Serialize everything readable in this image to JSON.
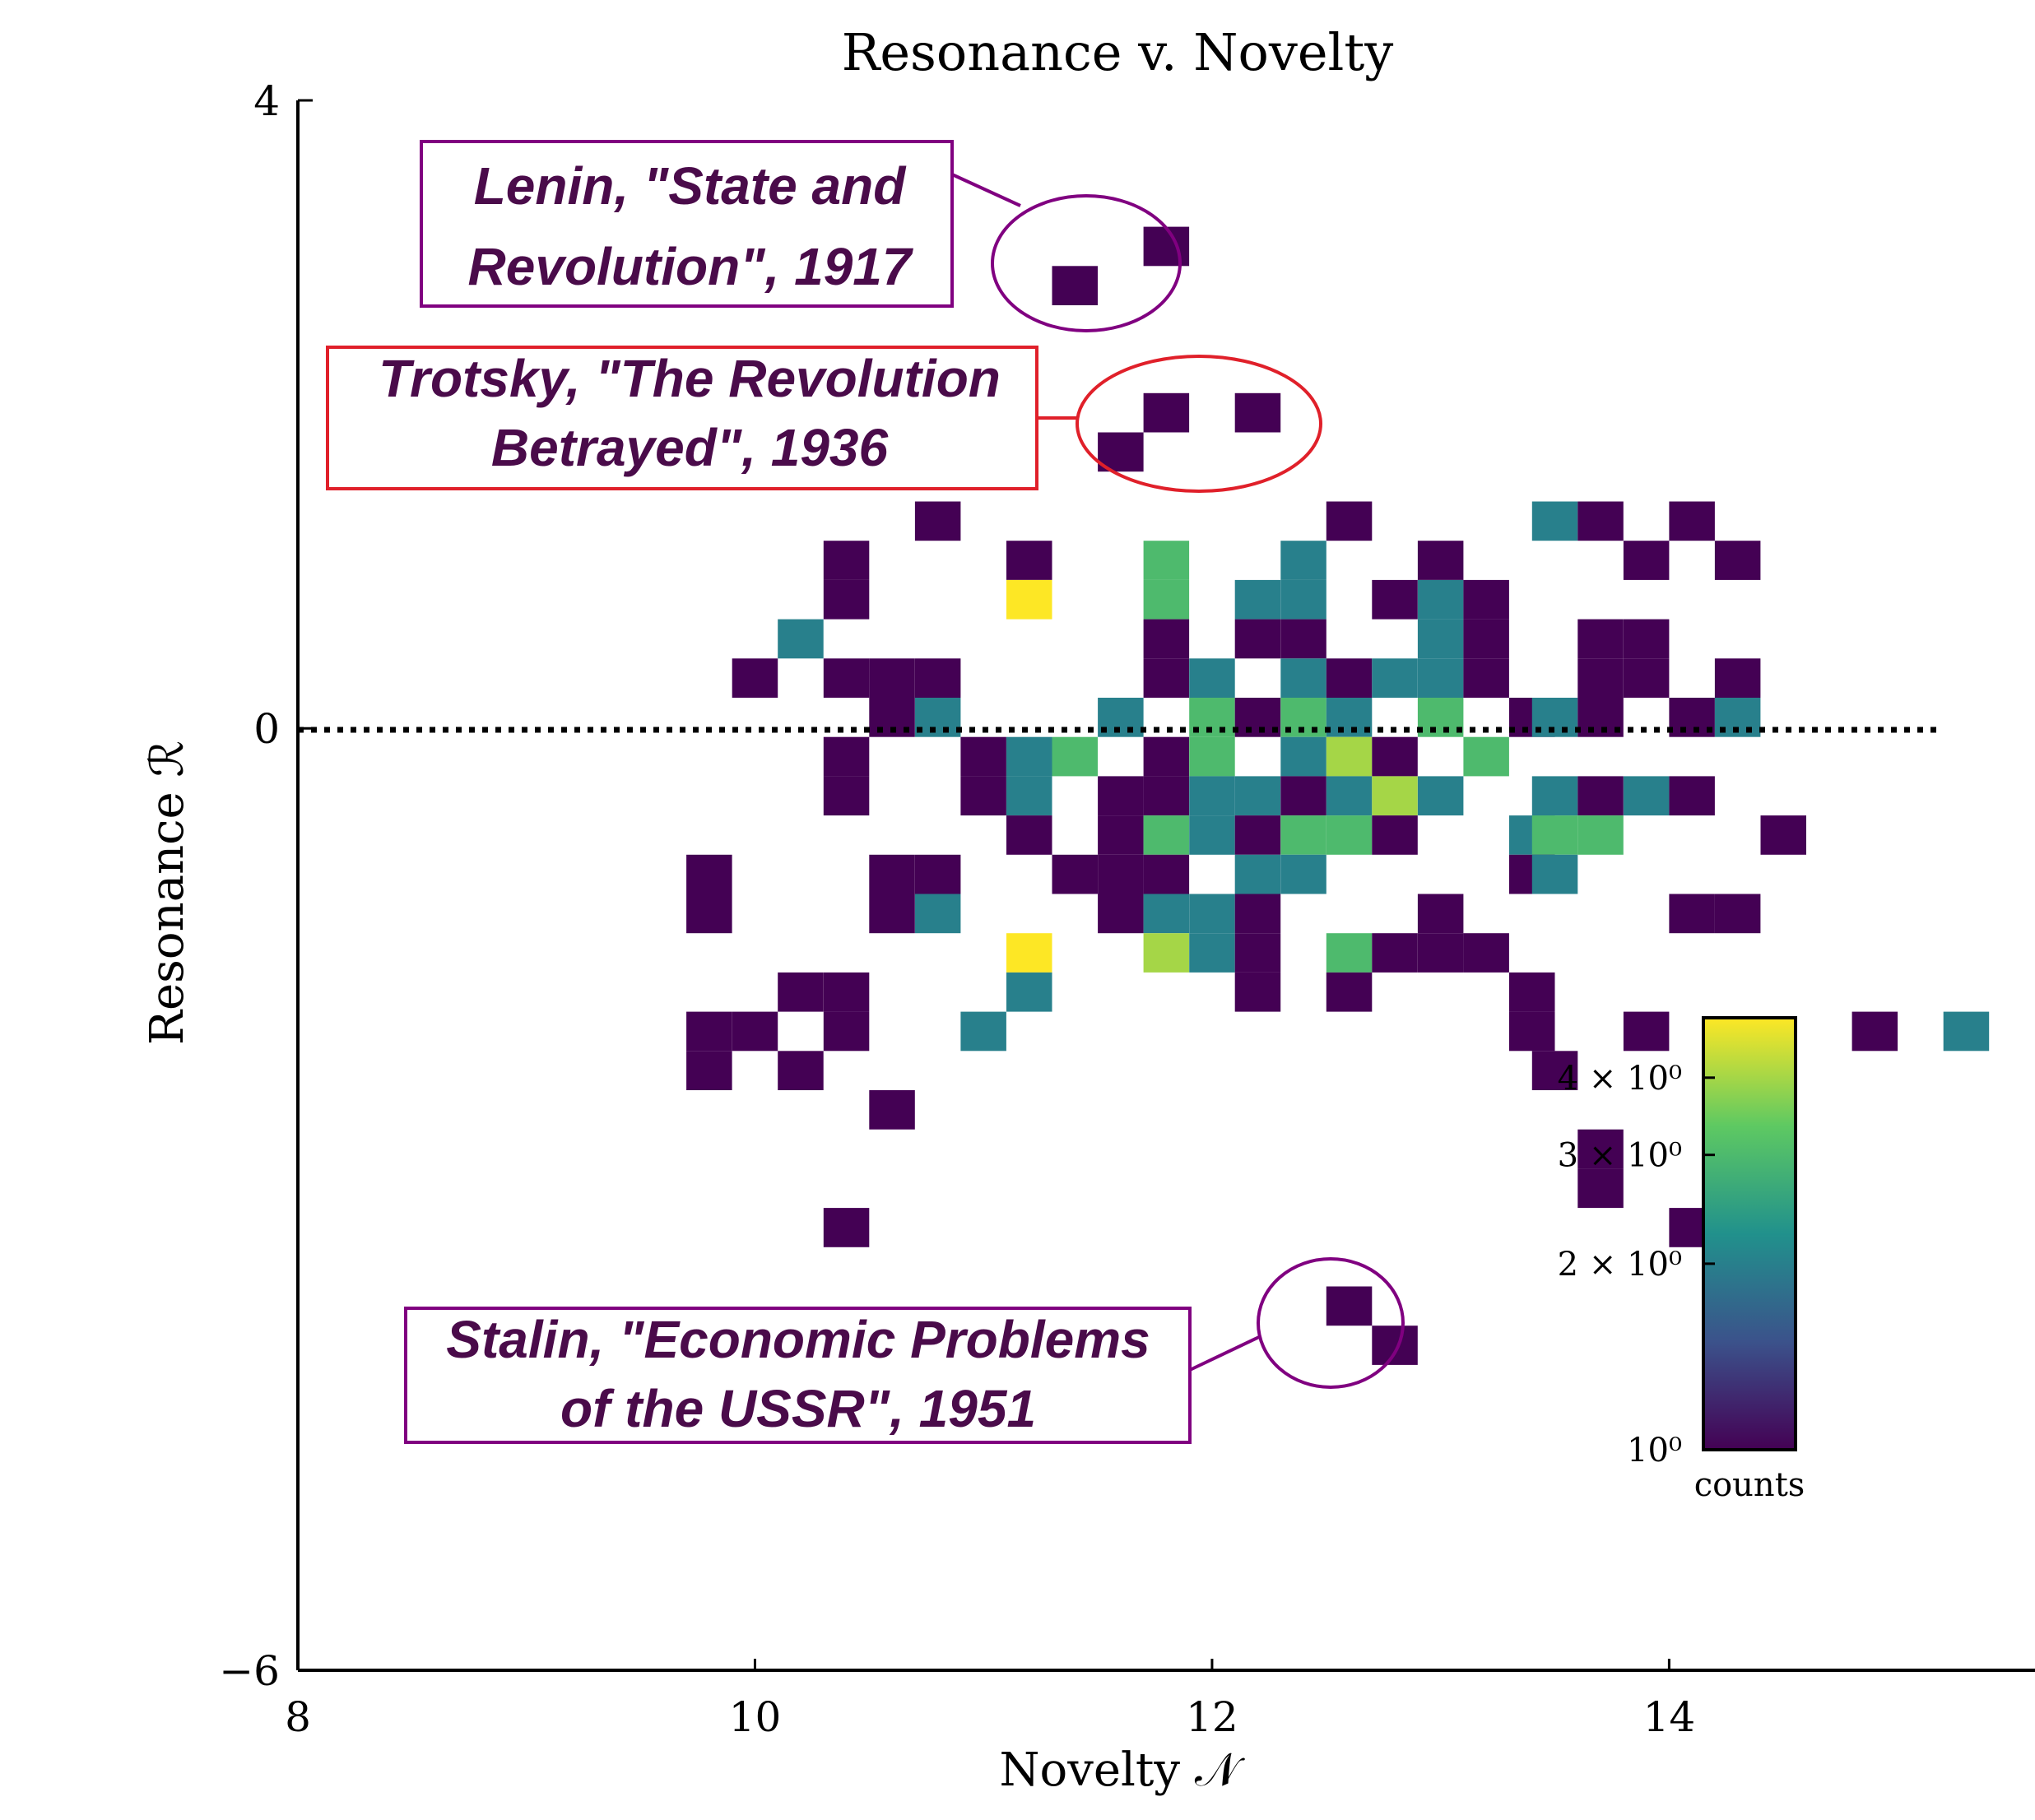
{
  "chart_data": {
    "type": "heatmap",
    "title": "Resonance v. Novelty",
    "xlabel": "Novelty 𝒩",
    "ylabel": "Resonance ℛ",
    "xlim": [
      8,
      15.5
    ],
    "ylim": [
      -6,
      4
    ],
    "x_ticks": [
      "8",
      "10",
      "12",
      "14"
    ],
    "y_ticks": [
      "4",
      "0",
      "−6"
    ],
    "zero_line": 0,
    "bin_width_x": 0.2,
    "bin_height_y": 0.25,
    "colorbar": {
      "label": "counts",
      "scale": "log",
      "range": [
        1,
        5
      ],
      "ticks": [
        "10⁰",
        "2 × 10⁰",
        "3 × 10⁰",
        "4 × 10⁰"
      ],
      "tick_values": [
        1,
        2,
        3,
        4
      ],
      "colormap": "viridis"
    },
    "cells": [
      [
        11.4,
        2.82,
        1
      ],
      [
        11.8,
        3.07,
        1
      ],
      [
        11.6,
        1.76,
        1
      ],
      [
        11.8,
        2.01,
        1
      ],
      [
        12.2,
        2.01,
        1
      ],
      [
        10.8,
        1.32,
        1
      ],
      [
        12.6,
        1.32,
        1
      ],
      [
        13.5,
        1.32,
        2
      ],
      [
        13.7,
        1.32,
        1
      ],
      [
        14.1,
        1.32,
        1
      ],
      [
        10.4,
        1.07,
        1
      ],
      [
        11.2,
        1.07,
        1
      ],
      [
        11.8,
        1.07,
        3
      ],
      [
        12.4,
        1.07,
        2
      ],
      [
        13.0,
        1.07,
        1
      ],
      [
        13.9,
        1.07,
        1
      ],
      [
        14.3,
        1.07,
        1
      ],
      [
        10.4,
        0.82,
        1
      ],
      [
        11.2,
        0.82,
        5
      ],
      [
        11.8,
        0.82,
        3
      ],
      [
        12.2,
        0.82,
        2
      ],
      [
        12.4,
        0.82,
        2
      ],
      [
        12.8,
        0.82,
        1
      ],
      [
        13.0,
        0.82,
        2
      ],
      [
        13.2,
        0.82,
        1
      ],
      [
        10.2,
        0.57,
        2
      ],
      [
        11.8,
        0.57,
        1
      ],
      [
        12.2,
        0.57,
        1
      ],
      [
        12.4,
        0.57,
        1
      ],
      [
        13.0,
        0.57,
        2
      ],
      [
        13.2,
        0.57,
        1
      ],
      [
        13.7,
        0.57,
        1
      ],
      [
        13.9,
        0.57,
        1
      ],
      [
        10.0,
        0.32,
        1
      ],
      [
        10.4,
        0.32,
        1
      ],
      [
        10.6,
        0.32,
        1
      ],
      [
        10.8,
        0.32,
        1
      ],
      [
        11.8,
        0.32,
        1
      ],
      [
        12.0,
        0.32,
        2
      ],
      [
        12.4,
        0.32,
        2
      ],
      [
        12.6,
        0.32,
        1
      ],
      [
        12.8,
        0.32,
        2
      ],
      [
        13.0,
        0.32,
        2
      ],
      [
        13.2,
        0.32,
        1
      ],
      [
        13.7,
        0.32,
        1
      ],
      [
        13.9,
        0.32,
        1
      ],
      [
        14.3,
        0.32,
        1
      ],
      [
        10.6,
        0.07,
        1
      ],
      [
        10.8,
        0.07,
        2
      ],
      [
        11.6,
        0.07,
        2
      ],
      [
        12.0,
        0.07,
        3
      ],
      [
        12.2,
        0.07,
        1
      ],
      [
        12.4,
        0.07,
        3
      ],
      [
        12.6,
        0.07,
        2
      ],
      [
        13.0,
        0.07,
        3
      ],
      [
        13.4,
        0.07,
        1
      ],
      [
        13.5,
        0.07,
        2
      ],
      [
        13.7,
        0.07,
        1
      ],
      [
        14.1,
        0.07,
        1
      ],
      [
        14.3,
        0.07,
        2
      ],
      [
        10.4,
        -0.18,
        1
      ],
      [
        11.0,
        -0.18,
        1
      ],
      [
        11.2,
        -0.18,
        2
      ],
      [
        11.4,
        -0.18,
        3
      ],
      [
        11.8,
        -0.18,
        1
      ],
      [
        12.0,
        -0.18,
        3
      ],
      [
        12.4,
        -0.18,
        2
      ],
      [
        12.6,
        -0.18,
        4
      ],
      [
        12.8,
        -0.18,
        1
      ],
      [
        13.2,
        -0.18,
        3
      ],
      [
        10.4,
        -0.43,
        1
      ],
      [
        11.0,
        -0.43,
        1
      ],
      [
        11.2,
        -0.43,
        2
      ],
      [
        11.6,
        -0.43,
        1
      ],
      [
        11.8,
        -0.43,
        1
      ],
      [
        12.0,
        -0.43,
        2
      ],
      [
        12.2,
        -0.43,
        2
      ],
      [
        12.4,
        -0.43,
        1
      ],
      [
        12.6,
        -0.43,
        2
      ],
      [
        12.8,
        -0.43,
        4
      ],
      [
        13.0,
        -0.43,
        2
      ],
      [
        13.5,
        -0.43,
        2
      ],
      [
        13.7,
        -0.43,
        1
      ],
      [
        13.9,
        -0.43,
        2
      ],
      [
        14.1,
        -0.43,
        1
      ],
      [
        11.2,
        -0.68,
        1
      ],
      [
        11.6,
        -0.68,
        1
      ],
      [
        11.8,
        -0.68,
        3
      ],
      [
        12.0,
        -0.68,
        2
      ],
      [
        12.2,
        -0.68,
        1
      ],
      [
        12.4,
        -0.68,
        3
      ],
      [
        12.6,
        -0.68,
        3
      ],
      [
        12.8,
        -0.68,
        1
      ],
      [
        13.4,
        -0.68,
        2
      ],
      [
        13.5,
        -0.68,
        3
      ],
      [
        13.7,
        -0.68,
        3
      ],
      [
        14.5,
        -0.68,
        1
      ],
      [
        9.8,
        -0.93,
        1
      ],
      [
        10.6,
        -0.93,
        1
      ],
      [
        10.8,
        -0.93,
        1
      ],
      [
        11.4,
        -0.93,
        1
      ],
      [
        11.6,
        -0.93,
        1
      ],
      [
        11.8,
        -0.93,
        1
      ],
      [
        12.2,
        -0.93,
        2
      ],
      [
        12.4,
        -0.93,
        2
      ],
      [
        13.4,
        -0.93,
        1
      ],
      [
        13.5,
        -0.93,
        2
      ],
      [
        9.8,
        -1.18,
        1
      ],
      [
        10.6,
        -1.18,
        1
      ],
      [
        10.8,
        -1.18,
        2
      ],
      [
        11.6,
        -1.18,
        1
      ],
      [
        11.8,
        -1.18,
        2
      ],
      [
        12.0,
        -1.18,
        2
      ],
      [
        12.2,
        -1.18,
        1
      ],
      [
        13.0,
        -1.18,
        1
      ],
      [
        14.1,
        -1.18,
        1
      ],
      [
        14.3,
        -1.18,
        1
      ],
      [
        11.2,
        -1.43,
        5
      ],
      [
        11.8,
        -1.43,
        4
      ],
      [
        12.0,
        -1.43,
        2
      ],
      [
        12.2,
        -1.43,
        1
      ],
      [
        12.6,
        -1.43,
        3
      ],
      [
        12.8,
        -1.43,
        1
      ],
      [
        13.0,
        -1.43,
        1
      ],
      [
        13.2,
        -1.43,
        1
      ],
      [
        10.2,
        -1.68,
        1
      ],
      [
        10.4,
        -1.68,
        1
      ],
      [
        11.2,
        -1.68,
        2
      ],
      [
        12.2,
        -1.68,
        1
      ],
      [
        12.6,
        -1.68,
        1
      ],
      [
        13.4,
        -1.68,
        1
      ],
      [
        9.8,
        -1.93,
        1
      ],
      [
        10.0,
        -1.93,
        1
      ],
      [
        10.4,
        -1.93,
        1
      ],
      [
        11.0,
        -1.93,
        2
      ],
      [
        13.4,
        -1.93,
        1
      ],
      [
        13.9,
        -1.93,
        1
      ],
      [
        14.9,
        -1.93,
        1
      ],
      [
        15.3,
        -1.93,
        2
      ],
      [
        9.8,
        -2.18,
        1
      ],
      [
        10.2,
        -2.18,
        1
      ],
      [
        13.5,
        -2.18,
        1
      ],
      [
        10.6,
        -2.43,
        1
      ],
      [
        13.7,
        -2.68,
        1
      ],
      [
        13.7,
        -2.93,
        1
      ],
      [
        10.4,
        -3.18,
        1
      ],
      [
        14.1,
        -3.18,
        1
      ],
      [
        12.6,
        -3.68,
        1
      ],
      [
        12.8,
        -3.93,
        1
      ]
    ],
    "annotations": [
      {
        "text": [
          "Lenin, \"State and",
          "Revolution\", 1917"
        ],
        "color": "#800080"
      },
      {
        "text": [
          "Trotsky, \"The Revolution",
          "Betrayed\", 1936"
        ],
        "color": "#e0202a"
      },
      {
        "text": [
          "Stalin, \"Economic Problems",
          "of the USSR\", 1951"
        ],
        "color": "#800080"
      }
    ]
  }
}
